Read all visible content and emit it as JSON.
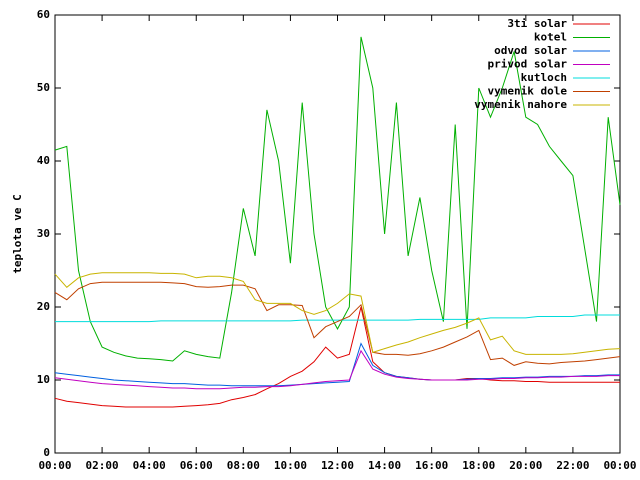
{
  "chart_data": {
    "type": "line",
    "y_label": "teplota ve C",
    "x": [
      0,
      0.5,
      1,
      1.5,
      2,
      2.5,
      3,
      3.5,
      4,
      4.5,
      5,
      5.5,
      6,
      6.5,
      7,
      7.5,
      8,
      8.5,
      9,
      9.5,
      10,
      10.5,
      11,
      11.5,
      12,
      12.5,
      13,
      13.5,
      14,
      14.5,
      15,
      15.5,
      16,
      16.5,
      17,
      17.5,
      18,
      18.5,
      19,
      19.5,
      20,
      20.5,
      21,
      21.5,
      22,
      22.5,
      23,
      23.5,
      24
    ],
    "xlim": [
      0,
      24
    ],
    "xticks": [
      {
        "value": 0,
        "label": "00:00"
      },
      {
        "value": 2,
        "label": "02:00"
      },
      {
        "value": 4,
        "label": "04:00"
      },
      {
        "value": 6,
        "label": "06:00"
      },
      {
        "value": 8,
        "label": "08:00"
      },
      {
        "value": 10,
        "label": "10:00"
      },
      {
        "value": 12,
        "label": "12:00"
      },
      {
        "value": 14,
        "label": "14:00"
      },
      {
        "value": 16,
        "label": "16:00"
      },
      {
        "value": 18,
        "label": "18:00"
      },
      {
        "value": 20,
        "label": "20:00"
      },
      {
        "value": 22,
        "label": "22:00"
      },
      {
        "value": 24,
        "label": "00:00"
      }
    ],
    "ylim": [
      0,
      60
    ],
    "yticks": [
      0,
      10,
      20,
      30,
      40,
      50,
      60
    ],
    "legend": "top-right",
    "series": [
      {
        "name": "3ti solar",
        "color": "#e00000",
        "values": [
          7.5,
          7.1,
          6.9,
          6.7,
          6.5,
          6.4,
          6.3,
          6.3,
          6.3,
          6.3,
          6.3,
          6.4,
          6.5,
          6.6,
          6.8,
          7.3,
          7.6,
          8,
          8.8,
          9.5,
          10.5,
          11.2,
          12.5,
          14.5,
          13,
          13.5,
          20,
          12.5,
          11,
          10.5,
          10.3,
          10.1,
          10,
          10,
          10,
          10.2,
          10.2,
          10,
          9.9,
          9.9,
          9.8,
          9.8,
          9.7,
          9.7,
          9.7,
          9.7,
          9.7,
          9.7,
          9.7
        ]
      },
      {
        "name": "kotel",
        "color": "#00b000",
        "values": [
          41.5,
          42,
          25,
          18,
          14.5,
          13.8,
          13.3,
          13,
          12.9,
          12.8,
          12.6,
          14,
          13.5,
          13.2,
          13,
          22,
          33.5,
          27,
          47,
          40,
          26,
          48,
          30,
          20,
          17,
          20,
          57,
          50,
          30,
          48,
          27,
          35,
          25,
          18,
          45,
          17,
          50,
          46,
          50,
          55,
          46,
          45,
          42,
          40,
          38,
          28,
          18,
          46,
          34
        ]
      },
      {
        "name": "odvod solar",
        "color": "#0060e0",
        "values": [
          11,
          10.8,
          10.6,
          10.4,
          10.2,
          10,
          9.9,
          9.8,
          9.7,
          9.6,
          9.5,
          9.5,
          9.4,
          9.3,
          9.3,
          9.2,
          9.2,
          9.2,
          9.2,
          9.2,
          9.3,
          9.4,
          9.5,
          9.6,
          9.7,
          9.8,
          15,
          12,
          11,
          10.5,
          10.3,
          10.1,
          10,
          10,
          10,
          10.1,
          10.2,
          10.2,
          10.3,
          10.3,
          10.4,
          10.4,
          10.5,
          10.5,
          10.5,
          10.6,
          10.6,
          10.7,
          10.7
        ]
      },
      {
        "name": "privod solar",
        "color": "#c000c0",
        "values": [
          10.3,
          10.1,
          9.9,
          9.7,
          9.5,
          9.4,
          9.3,
          9.2,
          9.1,
          9.0,
          8.9,
          8.9,
          8.8,
          8.8,
          8.8,
          8.9,
          9.0,
          9.0,
          9.1,
          9.1,
          9.2,
          9.4,
          9.6,
          9.8,
          9.9,
          10,
          14,
          11.5,
          10.8,
          10.4,
          10.2,
          10.1,
          10,
          10,
          10,
          10,
          10.1,
          10.1,
          10.2,
          10.2,
          10.3,
          10.3,
          10.4,
          10.4,
          10.5,
          10.5,
          10.5,
          10.6,
          10.6
        ]
      },
      {
        "name": "kutloch",
        "color": "#00dcdc",
        "values": [
          18,
          18,
          18,
          18,
          18,
          18,
          18,
          18,
          18,
          18.1,
          18.1,
          18.1,
          18.1,
          18.1,
          18.1,
          18.1,
          18.1,
          18.1,
          18.1,
          18.1,
          18.1,
          18.2,
          18.2,
          18.2,
          18.2,
          18.2,
          18.2,
          18.2,
          18.2,
          18.2,
          18.2,
          18.3,
          18.3,
          18.3,
          18.3,
          18.3,
          18.3,
          18.5,
          18.5,
          18.5,
          18.5,
          18.7,
          18.7,
          18.7,
          18.7,
          18.9,
          18.9,
          18.9,
          18.9
        ]
      },
      {
        "name": "vymenik dole",
        "color": "#c04000",
        "values": [
          22,
          21,
          22.5,
          23.2,
          23.4,
          23.4,
          23.4,
          23.4,
          23.4,
          23.4,
          23.3,
          23.2,
          22.8,
          22.7,
          22.8,
          23,
          23,
          22.5,
          19.5,
          20.3,
          20.3,
          20.2,
          15.8,
          17.3,
          18,
          18.7,
          20.3,
          13.8,
          13.5,
          13.5,
          13.4,
          13.6,
          14,
          14.5,
          15.2,
          15.9,
          16.8,
          12.8,
          13,
          12,
          12.5,
          12.3,
          12.2,
          12.4,
          12.5,
          12.6,
          12.8,
          13,
          13.2
        ]
      },
      {
        "name": "vymenik nahore",
        "color": "#c8b400",
        "values": [
          24.5,
          22.7,
          24,
          24.5,
          24.7,
          24.7,
          24.7,
          24.7,
          24.7,
          24.6,
          24.6,
          24.5,
          24,
          24.2,
          24.2,
          24,
          23.5,
          21,
          20.5,
          20.5,
          20.5,
          19.5,
          19,
          19.5,
          20.5,
          21.8,
          21.5,
          13.8,
          14.3,
          14.8,
          15.2,
          15.8,
          16.3,
          16.8,
          17.2,
          17.8,
          18.5,
          15.5,
          16,
          14,
          13.5,
          13.5,
          13.5,
          13.5,
          13.6,
          13.8,
          14,
          14.2,
          14.3
        ]
      }
    ]
  }
}
